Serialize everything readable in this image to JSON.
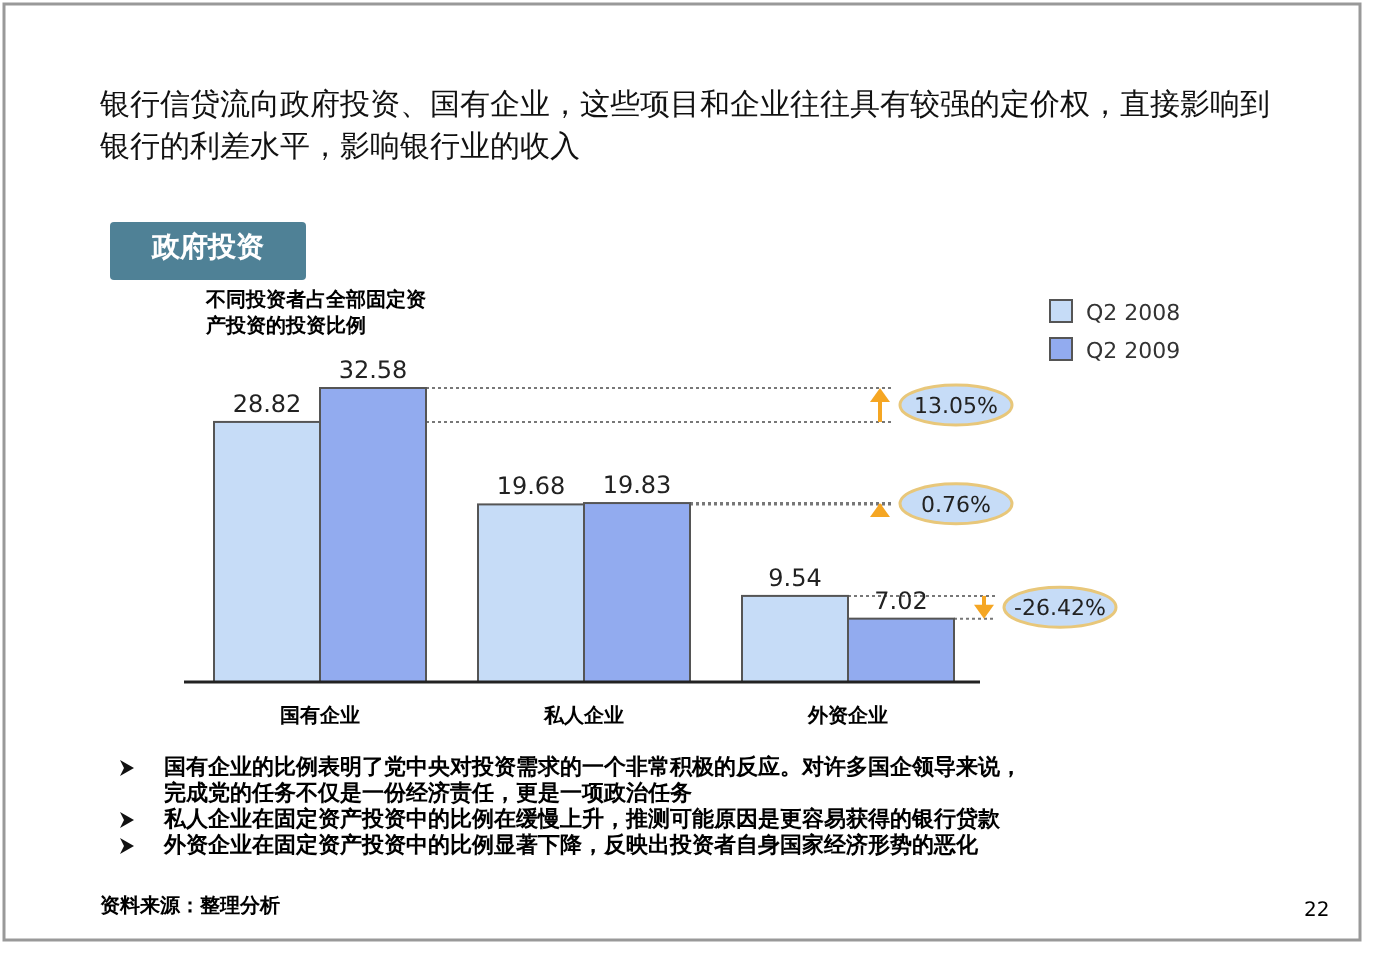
{
  "chart_data": {
    "type": "bar",
    "title": "银行信贷流向政府投资、国有企业，这些项目和企业往往具有较强的定价权，直接影响到银行的利差水平，影响银行业的收入",
    "subtitle": "政府投资",
    "ylabel": "不同投资者占全部固定资产投资的投资比例",
    "categories": [
      "国有企业",
      "私人企业",
      "外资企业"
    ],
    "series": [
      {
        "name": "Q2 2008",
        "color": "#c6dcf7",
        "values": [
          28.82,
          19.68,
          9.54
        ]
      },
      {
        "name": "Q2 2009",
        "color": "#92abef",
        "values": [
          32.58,
          19.83,
          7.02
        ]
      }
    ],
    "data_labels": true,
    "legend": "top right",
    "annotations": [
      "13.05%",
      "0.76%",
      "-26.42%",
      "国有企业的比例表明了党中央对投资需求的一个非常积极的反应。对许多国企领导来说，完成党的任务不仅是一份经济责任，更是一项政治任务",
      "私人企业在固定资产投资中的比例在缓慢上升，推测可能原因是更容易获得的银行贷款",
      "外资企业在固定资产投资中的比例显著下降，反映出投资者自身国家经济形势的恶化",
      "资料来源：整理分析",
      "22"
    ]
  }
}
